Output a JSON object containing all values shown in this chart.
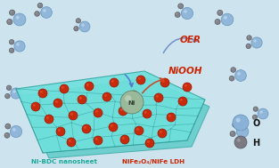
{
  "bg_color": "#cde4ee",
  "sheet_color_top": "#6ee0dc",
  "sheet_color_bot": "#50c8c4",
  "sheet_edge_color": "#38a8a4",
  "sheet_mesh_color": "#2a9490",
  "red_dot_color": "#cc2200",
  "red_dot_highlight": "#ee5533",
  "blue_sphere_color": "#8ab2d8",
  "blue_sphere_edge": "#6090b8",
  "blue_sphere_highlight": "#c8ddf0",
  "gray_sphere_color": "#7a7a80",
  "gray_sphere_edge": "#555560",
  "ni_sphere_color": "#9ab89a",
  "ni_sphere_edge": "#5a785a",
  "ni_sphere_highlight": "#c5d8c5",
  "label_OER": "OER",
  "label_NiOOH": "NiOOH",
  "label_NiBDC": "Ni-BDC nanosheet",
  "label_NiFe": "NiFe₂O₄/NiFe LDH",
  "label_O": "O",
  "label_H": "H",
  "oer_color": "#cc2200",
  "niooh_color": "#cc2200",
  "nibdc_color": "#18a898",
  "nife_color": "#cc2200",
  "legend_O_color": "#8ab2d8",
  "legend_H_color": "#7a7a80",
  "legend_label_color": "#111111",
  "arrow_oer_color": "#7090cc",
  "arrow_niooh_color": "#cc4422",
  "arrow_blue_color": "#5577cc",
  "arrow_red_color": "#cc4422"
}
